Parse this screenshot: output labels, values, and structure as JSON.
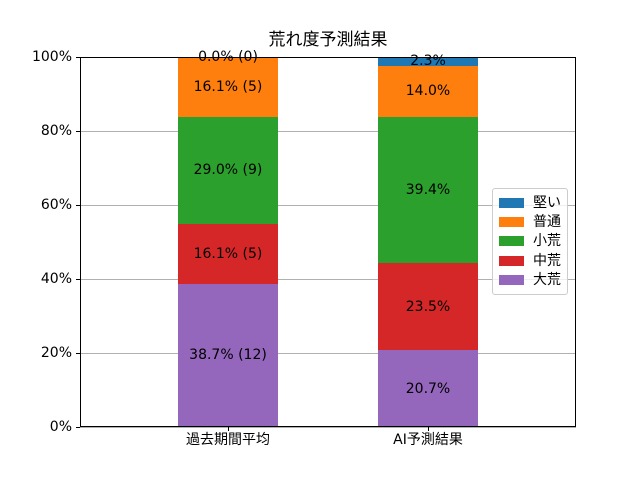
{
  "chart_data": {
    "type": "bar",
    "stacked": true,
    "units": "percent",
    "title": "荒れ度予測結果",
    "categories": [
      "過去期間平均",
      "AI予測結果"
    ],
    "series": [
      {
        "name": "堅い",
        "color": "#1f77b4",
        "values": [
          0.0,
          2.3
        ],
        "labels": [
          "0.0% (0)",
          "2.3%"
        ]
      },
      {
        "name": "普通",
        "color": "#ff7f0e",
        "values": [
          16.1,
          14.0
        ],
        "labels": [
          "16.1% (5)",
          "14.0%"
        ]
      },
      {
        "name": "小荒",
        "color": "#2ca02c",
        "values": [
          29.0,
          39.4
        ],
        "labels": [
          "29.0% (9)",
          "39.4%"
        ]
      },
      {
        "name": "中荒",
        "color": "#d62728",
        "values": [
          16.1,
          23.5
        ],
        "labels": [
          "16.1% (5)",
          "23.5%"
        ]
      },
      {
        "name": "大荒",
        "color": "#9467bd",
        "values": [
          38.7,
          20.7
        ],
        "labels": [
          "38.7% (12)",
          "20.7%"
        ]
      }
    ],
    "stack_order": "bottom-to-top reverse of legend: 大荒, 中荒, 小荒, 普通, 堅い",
    "y_ticks": [
      "0%",
      "20%",
      "40%",
      "60%",
      "80%",
      "100%"
    ],
    "ylim": [
      0,
      100
    ],
    "grid": true,
    "legend": {
      "position": "center right",
      "entries": [
        "堅い",
        "普通",
        "小荒",
        "中荒",
        "大荒"
      ]
    },
    "colors": {
      "background": "#ffffff",
      "grid": "#b0b0b0",
      "spine": "#000000",
      "text": "#000000",
      "legend_border": "#cccccc"
    }
  }
}
